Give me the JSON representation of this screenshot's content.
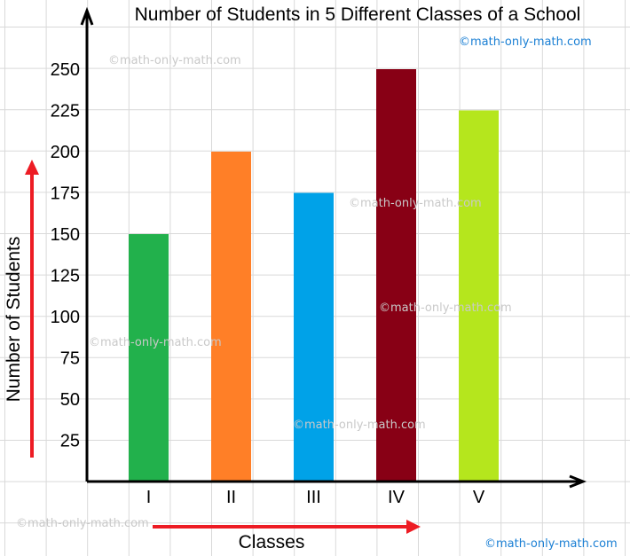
{
  "chart_data": {
    "type": "bar",
    "title": "Number of Students in 5 Different Classes of a School",
    "xlabel": "Classes",
    "ylabel": "Number of Students",
    "categories": [
      "I",
      "II",
      "III",
      "IV",
      "V"
    ],
    "values": [
      150,
      200,
      175,
      250,
      225
    ],
    "colors": [
      "#22b14c",
      "#ff7f27",
      "#00a2e8",
      "#880015",
      "#b5e61d"
    ],
    "yticks": [
      25,
      50,
      75,
      100,
      125,
      150,
      175,
      200,
      225,
      250
    ],
    "ylim": [
      0,
      275
    ],
    "grid": true,
    "arrow_color": "#ed1c24"
  },
  "watermarks": {
    "gray": "©math-only-math.com",
    "blue": "©math-only-math.com"
  }
}
